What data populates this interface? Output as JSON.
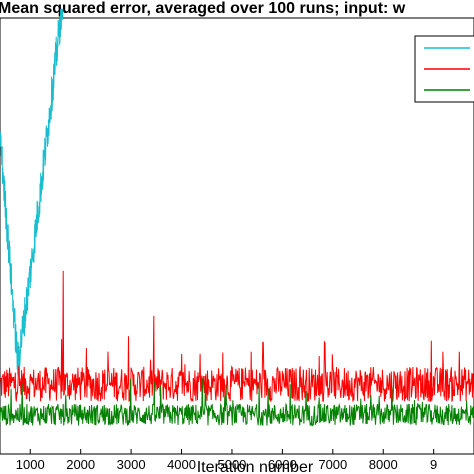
{
  "chart_data": {
    "type": "line",
    "title": "Mean squared error, averaged over 100 runs; input: w",
    "xlabel": "Iteration number",
    "ylabel": "",
    "x_ticks": [
      1000,
      2000,
      3000,
      4000,
      5000,
      6000,
      7000,
      8000,
      9
    ],
    "x_tick_labels": [
      "1000",
      "2000",
      "3000",
      "4000",
      "5000",
      "6000",
      "7000",
      "8000",
      "9"
    ],
    "xlim": [
      400,
      9800
    ],
    "grid": false,
    "legend": {
      "location": "top-right",
      "entries_visible_text": []
    },
    "series": [
      {
        "color": "#17becf",
        "x_range": [
          400,
          1650
        ],
        "start_level": 0.73,
        "min_level": 0.21,
        "min_at": 750,
        "end_level": 1.0
      },
      {
        "color": "#ff0000",
        "x_range": [
          400,
          9800
        ],
        "mean_level": 0.16,
        "spread": 0.08,
        "max_level": 0.42,
        "max_at": 1650
      },
      {
        "color": "#008000",
        "x_range": [
          400,
          9800
        ],
        "mean_level": 0.09,
        "spread": 0.05,
        "max_level": 0.15
      }
    ],
    "y_level_note": "levels normalized 0 (bottom) to 1 (top) of plot area; no y tick labels visible"
  }
}
